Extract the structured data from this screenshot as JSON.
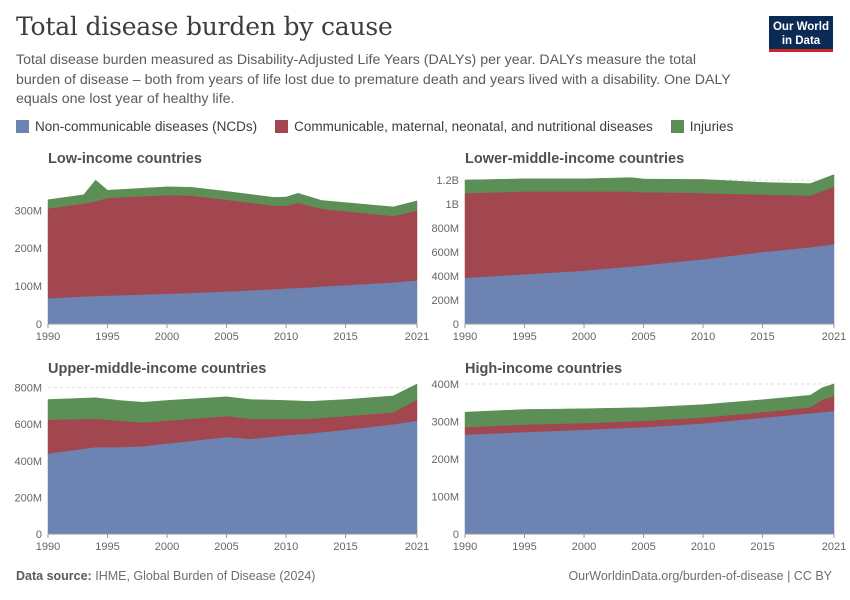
{
  "header": {
    "title": "Total disease burden by cause",
    "subtitle": "Total disease burden measured as Disability-Adjusted Life Years (DALYs) per year. DALYs measure the total burden of disease – both from years of life lost due to premature death and years lived with a disability. One DALY equals one lost year of healthy life.",
    "logo_line1": "Our World",
    "logo_line2": "in Data"
  },
  "legend": [
    {
      "label": "Non-communicable diseases (NCDs)",
      "color": "#6d83b1"
    },
    {
      "label": "Communicable, maternal, neonatal, and nutritional diseases",
      "color": "#a24650"
    },
    {
      "label": "Injuries",
      "color": "#5c8f55"
    }
  ],
  "footer": {
    "source_label": "Data source:",
    "source_text": "IHME, Global Burden of Disease (2024)",
    "url": "OurWorldinData.org/burden-of-disease | CC BY"
  },
  "chart_data": [
    {
      "type": "area",
      "title": "Low-income countries",
      "x": [
        1990,
        1993,
        1994,
        1995,
        2000,
        2002,
        2005,
        2009,
        2010,
        2011,
        2013,
        2019,
        2021
      ],
      "ylim": [
        0,
        380000000
      ],
      "yticks": [
        0,
        100000000,
        200000000,
        300000000
      ],
      "ytick_labels": [
        "0",
        "100M",
        "200M",
        "300M"
      ],
      "xticks": [
        1990,
        1995,
        2000,
        2005,
        2010,
        2015,
        2021
      ],
      "series": [
        {
          "name": "Non-communicable diseases (NCDs)",
          "values": [
            68000000,
            73000000,
            74000000,
            75000000,
            80000000,
            82000000,
            86000000,
            92000000,
            94000000,
            95000000,
            99000000,
            110000000,
            115000000
          ]
        },
        {
          "name": "Communicable, maternal, neonatal, and nutritional diseases",
          "values": [
            237000000,
            245000000,
            250000000,
            258000000,
            260000000,
            257000000,
            242000000,
            220000000,
            218000000,
            225000000,
            205000000,
            175000000,
            185000000
          ]
        },
        {
          "name": "Injuries",
          "values": [
            23000000,
            23000000,
            56000000,
            20000000,
            22000000,
            22000000,
            22000000,
            22000000,
            23000000,
            25000000,
            22000000,
            24000000,
            25000000
          ]
        }
      ]
    },
    {
      "type": "area",
      "title": "Lower-middle-income countries",
      "x": [
        1990,
        1995,
        2000,
        2004,
        2005,
        2009,
        2010,
        2015,
        2019,
        2021
      ],
      "ylim": [
        0,
        1200000000
      ],
      "yticks": [
        0,
        200000000,
        400000000,
        600000000,
        800000000,
        1000000000,
        1200000000
      ],
      "ytick_labels": [
        "0",
        "200M",
        "400M",
        "600M",
        "800M",
        "1B",
        "1.2B"
      ],
      "xticks": [
        1990,
        1995,
        2000,
        2005,
        2010,
        2015,
        2021
      ],
      "series": [
        {
          "name": "Non-communicable diseases (NCDs)",
          "values": [
            385000000,
            415000000,
            445000000,
            480000000,
            490000000,
            530000000,
            540000000,
            600000000,
            640000000,
            665000000
          ]
        },
        {
          "name": "Communicable, maternal, neonatal, and nutritional diseases",
          "values": [
            705000000,
            690000000,
            660000000,
            625000000,
            608000000,
            565000000,
            550000000,
            480000000,
            430000000,
            480000000
          ]
        },
        {
          "name": "Injuries",
          "values": [
            110000000,
            105000000,
            105000000,
            115000000,
            110000000,
            110000000,
            115000000,
            100000000,
            100000000,
            100000000
          ]
        }
      ]
    },
    {
      "type": "area",
      "title": "Upper-middle-income countries",
      "x": [
        1990,
        1994,
        1996,
        1998,
        2000,
        2005,
        2007,
        2010,
        2012,
        2015,
        2019,
        2021
      ],
      "ylim": [
        0,
        820000000
      ],
      "yticks": [
        0,
        200000000,
        400000000,
        600000000,
        800000000
      ],
      "ytick_labels": [
        "0",
        "200M",
        "400M",
        "600M",
        "800M"
      ],
      "xticks": [
        1990,
        1995,
        2000,
        2005,
        2010,
        2015,
        2021
      ],
      "series": [
        {
          "name": "Non-communicable diseases (NCDs)",
          "values": [
            440000000,
            475000000,
            475000000,
            480000000,
            495000000,
            530000000,
            520000000,
            540000000,
            550000000,
            570000000,
            600000000,
            620000000
          ]
        },
        {
          "name": "Communicable, maternal, neonatal, and nutritional diseases",
          "values": [
            185000000,
            155000000,
            145000000,
            130000000,
            125000000,
            115000000,
            110000000,
            90000000,
            80000000,
            75000000,
            65000000,
            115000000
          ]
        },
        {
          "name": "Injuries",
          "values": [
            110000000,
            115000000,
            110000000,
            110000000,
            110000000,
            105000000,
            105000000,
            100000000,
            95000000,
            90000000,
            90000000,
            85000000
          ]
        }
      ]
    },
    {
      "type": "area",
      "title": "High-income countries",
      "x": [
        1990,
        1995,
        2000,
        2005,
        2010,
        2015,
        2019,
        2020,
        2021
      ],
      "ylim": [
        0,
        400000000
      ],
      "yticks": [
        0,
        100000000,
        200000000,
        300000000,
        400000000
      ],
      "ytick_labels": [
        "0",
        "100M",
        "200M",
        "300M",
        "400M"
      ],
      "xticks": [
        1990,
        1995,
        2000,
        2005,
        2010,
        2015,
        2021
      ],
      "series": [
        {
          "name": "Non-communicable diseases (NCDs)",
          "values": [
            265000000,
            272000000,
            278000000,
            285000000,
            295000000,
            310000000,
            322000000,
            325000000,
            328000000
          ]
        },
        {
          "name": "Communicable, maternal, neonatal, and nutritional diseases",
          "values": [
            20000000,
            20000000,
            18000000,
            17000000,
            16000000,
            15000000,
            16000000,
            33000000,
            40000000
          ]
        },
        {
          "name": "Injuries",
          "values": [
            40000000,
            40000000,
            38000000,
            35000000,
            34000000,
            33000000,
            32000000,
            32000000,
            32000000
          ]
        }
      ]
    }
  ]
}
